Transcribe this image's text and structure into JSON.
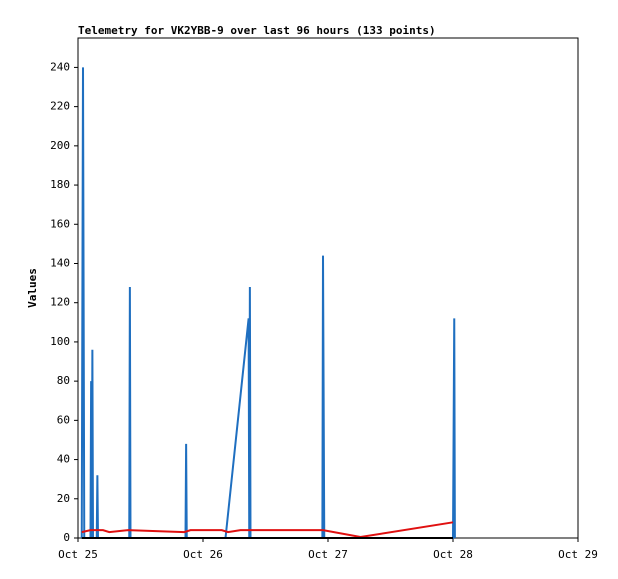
{
  "chart_data": {
    "type": "line",
    "title": "Telemetry for VK2YBB-9 over last 96 hours (133 points)",
    "y_label": "Values",
    "xlim": [
      0,
      4
    ],
    "xticks": [
      {
        "value": 0,
        "label": "Oct 25"
      },
      {
        "value": 1,
        "label": "Oct 26"
      },
      {
        "value": 2,
        "label": "Oct 27"
      },
      {
        "value": 3,
        "label": "Oct 28"
      },
      {
        "value": 4,
        "label": "Oct 29"
      }
    ],
    "ylim": [
      0,
      255
    ],
    "yticks": [
      0,
      20,
      40,
      60,
      80,
      100,
      120,
      140,
      160,
      180,
      200,
      220,
      240
    ],
    "series": [
      {
        "color": "#1f6fc0",
        "x": [
          0.03,
          0.04,
          0.05,
          0.1,
          0.105,
          0.11,
          0.115,
          0.12,
          0.15,
          0.155,
          0.16,
          0.41,
          0.415,
          0.42,
          0.86,
          0.865,
          0.87,
          1.18,
          1.365,
          1.37,
          1.375,
          1.38,
          1.955,
          1.96,
          1.965,
          1.97,
          3.0,
          3.005,
          3.01,
          3.015
        ],
        "values": [
          0,
          240,
          0,
          0,
          80,
          0,
          96,
          0,
          0,
          32,
          0,
          0,
          128,
          0,
          0,
          48,
          0,
          0,
          112,
          0,
          128,
          0,
          0,
          144,
          72,
          0,
          0,
          56,
          112,
          0
        ]
      },
      {
        "color": "#e01010",
        "x": [
          0.03,
          0.1,
          0.2,
          0.25,
          0.4,
          0.85,
          0.9,
          1.15,
          1.2,
          1.3,
          1.96,
          2.26,
          3.0
        ],
        "values": [
          3,
          4,
          4,
          3,
          4,
          3,
          4,
          4,
          3,
          4,
          4,
          0.5,
          8
        ]
      },
      {
        "color": "#000000",
        "x": [
          0.03,
          3.0
        ],
        "values": [
          0,
          0
        ]
      }
    ]
  }
}
